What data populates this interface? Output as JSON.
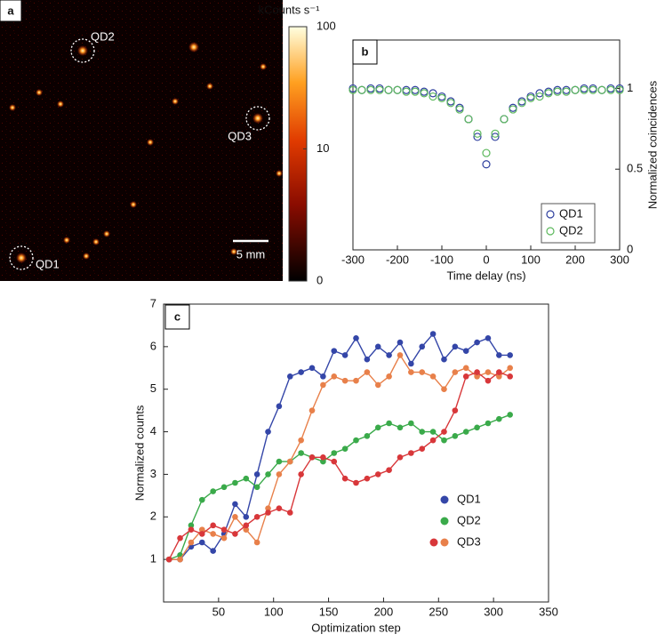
{
  "chart_data": [
    {
      "type": "image",
      "panel": "a",
      "annotations": [
        "QD1",
        "QD2",
        "QD3"
      ],
      "scale_bar": "5 mm",
      "colorbar": {
        "label": "kCounts s⁻¹",
        "ticks": [
          0,
          10,
          100
        ],
        "lim": [
          0,
          100
        ]
      }
    },
    {
      "type": "scatter",
      "panel": "b",
      "xlabel": "Time delay (ns)",
      "ylabel": "Normalized coincidences",
      "xlim": [
        -300,
        300
      ],
      "xticks": [
        -300,
        -200,
        -100,
        0,
        100,
        200,
        300
      ],
      "ylim": [
        0,
        1.3
      ],
      "yticks": [
        0,
        0.5,
        1
      ],
      "legend": "lower-right",
      "x": [
        -300,
        -280,
        -260,
        -240,
        -220,
        -200,
        -180,
        -160,
        -140,
        -120,
        -100,
        -80,
        -60,
        -40,
        -20,
        0,
        20,
        40,
        60,
        80,
        100,
        120,
        140,
        160,
        180,
        200,
        220,
        240,
        260,
        280,
        300
      ],
      "series": [
        {
          "name": "QD1",
          "color": "#2e3f9e",
          "values": [
            1,
            0.99,
            1,
            1,
            0.99,
            0.99,
            0.99,
            0.99,
            0.98,
            0.97,
            0.95,
            0.92,
            0.88,
            0.81,
            0.7,
            0.53,
            0.7,
            0.81,
            0.88,
            0.92,
            0.95,
            0.97,
            0.98,
            0.99,
            0.99,
            0.99,
            1,
            1,
            0.99,
            1,
            1
          ]
        },
        {
          "name": "QD2",
          "color": "#5cb85c",
          "values": [
            0.99,
            0.99,
            0.99,
            0.99,
            0.99,
            0.99,
            0.98,
            0.98,
            0.97,
            0.95,
            0.94,
            0.91,
            0.87,
            0.81,
            0.72,
            0.6,
            0.72,
            0.81,
            0.87,
            0.91,
            0.94,
            0.95,
            0.97,
            0.98,
            0.98,
            0.99,
            0.99,
            0.99,
            0.99,
            0.99,
            0.99
          ]
        }
      ]
    },
    {
      "type": "line",
      "panel": "c",
      "xlabel": "Optimization step",
      "ylabel": "Normalized counts",
      "xlim": [
        0,
        350
      ],
      "xticks": [
        50,
        100,
        150,
        200,
        250,
        300,
        350
      ],
      "ylim": [
        0,
        7
      ],
      "yticks": [
        1,
        2,
        3,
        4,
        5,
        6,
        7
      ],
      "x": [
        5,
        15,
        25,
        35,
        45,
        55,
        65,
        75,
        85,
        95,
        105,
        115,
        125,
        135,
        145,
        155,
        165,
        175,
        185,
        195,
        205,
        215,
        225,
        235,
        245,
        255,
        265,
        275,
        285,
        295,
        305,
        315
      ],
      "series": [
        {
          "name": "QD1",
          "color": "#3446a8",
          "values": [
            1,
            1,
            1.3,
            1.4,
            1.2,
            1.6,
            2.3,
            2,
            3,
            4,
            4.6,
            5.3,
            5.4,
            5.5,
            5.3,
            5.9,
            5.8,
            6.2,
            5.7,
            6,
            5.8,
            6.1,
            5.6,
            6,
            6.3,
            5.7,
            6,
            5.9,
            6.1,
            6.2,
            5.8,
            5.8
          ]
        },
        {
          "name": "QD2",
          "color": "#3aaa4a",
          "values": [
            1,
            1.1,
            1.8,
            2.4,
            2.6,
            2.7,
            2.8,
            2.9,
            2.7,
            3,
            3.3,
            3.3,
            3.5,
            3.4,
            3.3,
            3.5,
            3.6,
            3.8,
            3.9,
            4.1,
            4.2,
            4.1,
            4.2,
            4,
            4,
            3.8,
            3.9,
            4,
            4.1,
            4.2,
            4.3,
            4.4
          ]
        },
        {
          "name": "QD3",
          "color": "#e8804a",
          "values": [
            1,
            1,
            1.4,
            1.7,
            1.6,
            1.5,
            2,
            1.7,
            1.4,
            2.2,
            3,
            3.3,
            3.8,
            4.5,
            5.1,
            5.3,
            5.2,
            5.2,
            5.4,
            5.1,
            5.3,
            5.8,
            5.4,
            5.4,
            5.3,
            5,
            5.4,
            5.5,
            5.3,
            5.4,
            5.3,
            5.5
          ]
        },
        {
          "color": "#d8373a",
          "values": [
            1,
            1.5,
            1.7,
            1.6,
            1.8,
            1.7,
            1.6,
            1.8,
            2,
            2.1,
            2.2,
            2.1,
            3,
            3.4,
            3.4,
            3.3,
            2.9,
            2.8,
            2.9,
            3,
            3.1,
            3.4,
            3.5,
            3.6,
            3.8,
            4,
            4.5,
            5.3,
            5.4,
            5.2,
            5.4,
            5.3
          ]
        }
      ]
    }
  ]
}
